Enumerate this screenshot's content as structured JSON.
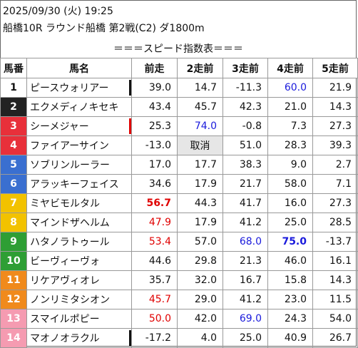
{
  "header": {
    "datetime": "2025/09/30 (火) 19:25",
    "race": "船橋10R ラウンド船橋 第2戦(C2) ダ1800m"
  },
  "title": "＝＝＝スピード指数表＝＝＝",
  "columns": [
    "馬番",
    "馬名",
    "前走",
    "2走前",
    "3走前",
    "4走前",
    "5走前"
  ],
  "colors": {
    "frame_1": "#ffffff",
    "frame_2": "#222222",
    "frame_3": "#e8303a",
    "frame_4": "#3a6fd0",
    "frame_5": "#f2c200",
    "frame_6": "#2e9e34",
    "frame_7": "#f08a1c",
    "frame_8": "#f59bb1",
    "red_value": "#e00000",
    "blue_value": "#1a1adc",
    "cancel_bg": "#e6e6e6"
  },
  "rows": [
    {
      "num": "1",
      "name": "ピースウォリアー",
      "vals": [
        "39.0",
        "14.7",
        "-11.3",
        "60.0",
        "21.9"
      ]
    },
    {
      "num": "2",
      "name": "エクメディノキセキ",
      "vals": [
        "43.4",
        "45.7",
        "42.3",
        "21.0",
        "14.3"
      ]
    },
    {
      "num": "3",
      "name": "シーメジャー",
      "vals": [
        "25.3",
        "74.0",
        "-0.8",
        "7.3",
        "27.3"
      ]
    },
    {
      "num": "4",
      "name": "ファイアーサイン",
      "vals": [
        "-13.0",
        "取消",
        "51.0",
        "28.3",
        "39.3"
      ]
    },
    {
      "num": "5",
      "name": "ソブリンルーラー",
      "vals": [
        "17.0",
        "17.7",
        "38.3",
        "9.0",
        "2.7"
      ]
    },
    {
      "num": "6",
      "name": "アラッキーフェイス",
      "vals": [
        "34.6",
        "17.9",
        "21.7",
        "58.0",
        "7.1"
      ]
    },
    {
      "num": "7",
      "name": "ミヤビモルタル",
      "vals": [
        "56.7",
        "44.3",
        "41.7",
        "16.0",
        "27.3"
      ]
    },
    {
      "num": "8",
      "name": "マインドザヘルム",
      "vals": [
        "47.9",
        "17.9",
        "41.2",
        "25.0",
        "28.5"
      ]
    },
    {
      "num": "9",
      "name": "ハタノラトゥール",
      "vals": [
        "53.4",
        "57.0",
        "68.0",
        "75.0",
        "-13.7"
      ]
    },
    {
      "num": "10",
      "name": "ビーヴィーヴォ",
      "vals": [
        "44.6",
        "29.8",
        "21.3",
        "46.0",
        "16.1"
      ]
    },
    {
      "num": "11",
      "name": "リケアヴィオレ",
      "vals": [
        "35.7",
        "32.0",
        "16.7",
        "15.8",
        "14.3"
      ]
    },
    {
      "num": "12",
      "name": "ノンリミタシオン",
      "vals": [
        "45.7",
        "29.0",
        "41.2",
        "23.0",
        "11.5"
      ]
    },
    {
      "num": "13",
      "name": "スマイルポピー",
      "vals": [
        "50.0",
        "42.0",
        "69.0",
        "24.3",
        "54.0"
      ]
    },
    {
      "num": "14",
      "name": "マオノオラクル",
      "vals": [
        "-17.2",
        "4.0",
        "25.0",
        "40.9",
        "26.7"
      ]
    }
  ]
}
